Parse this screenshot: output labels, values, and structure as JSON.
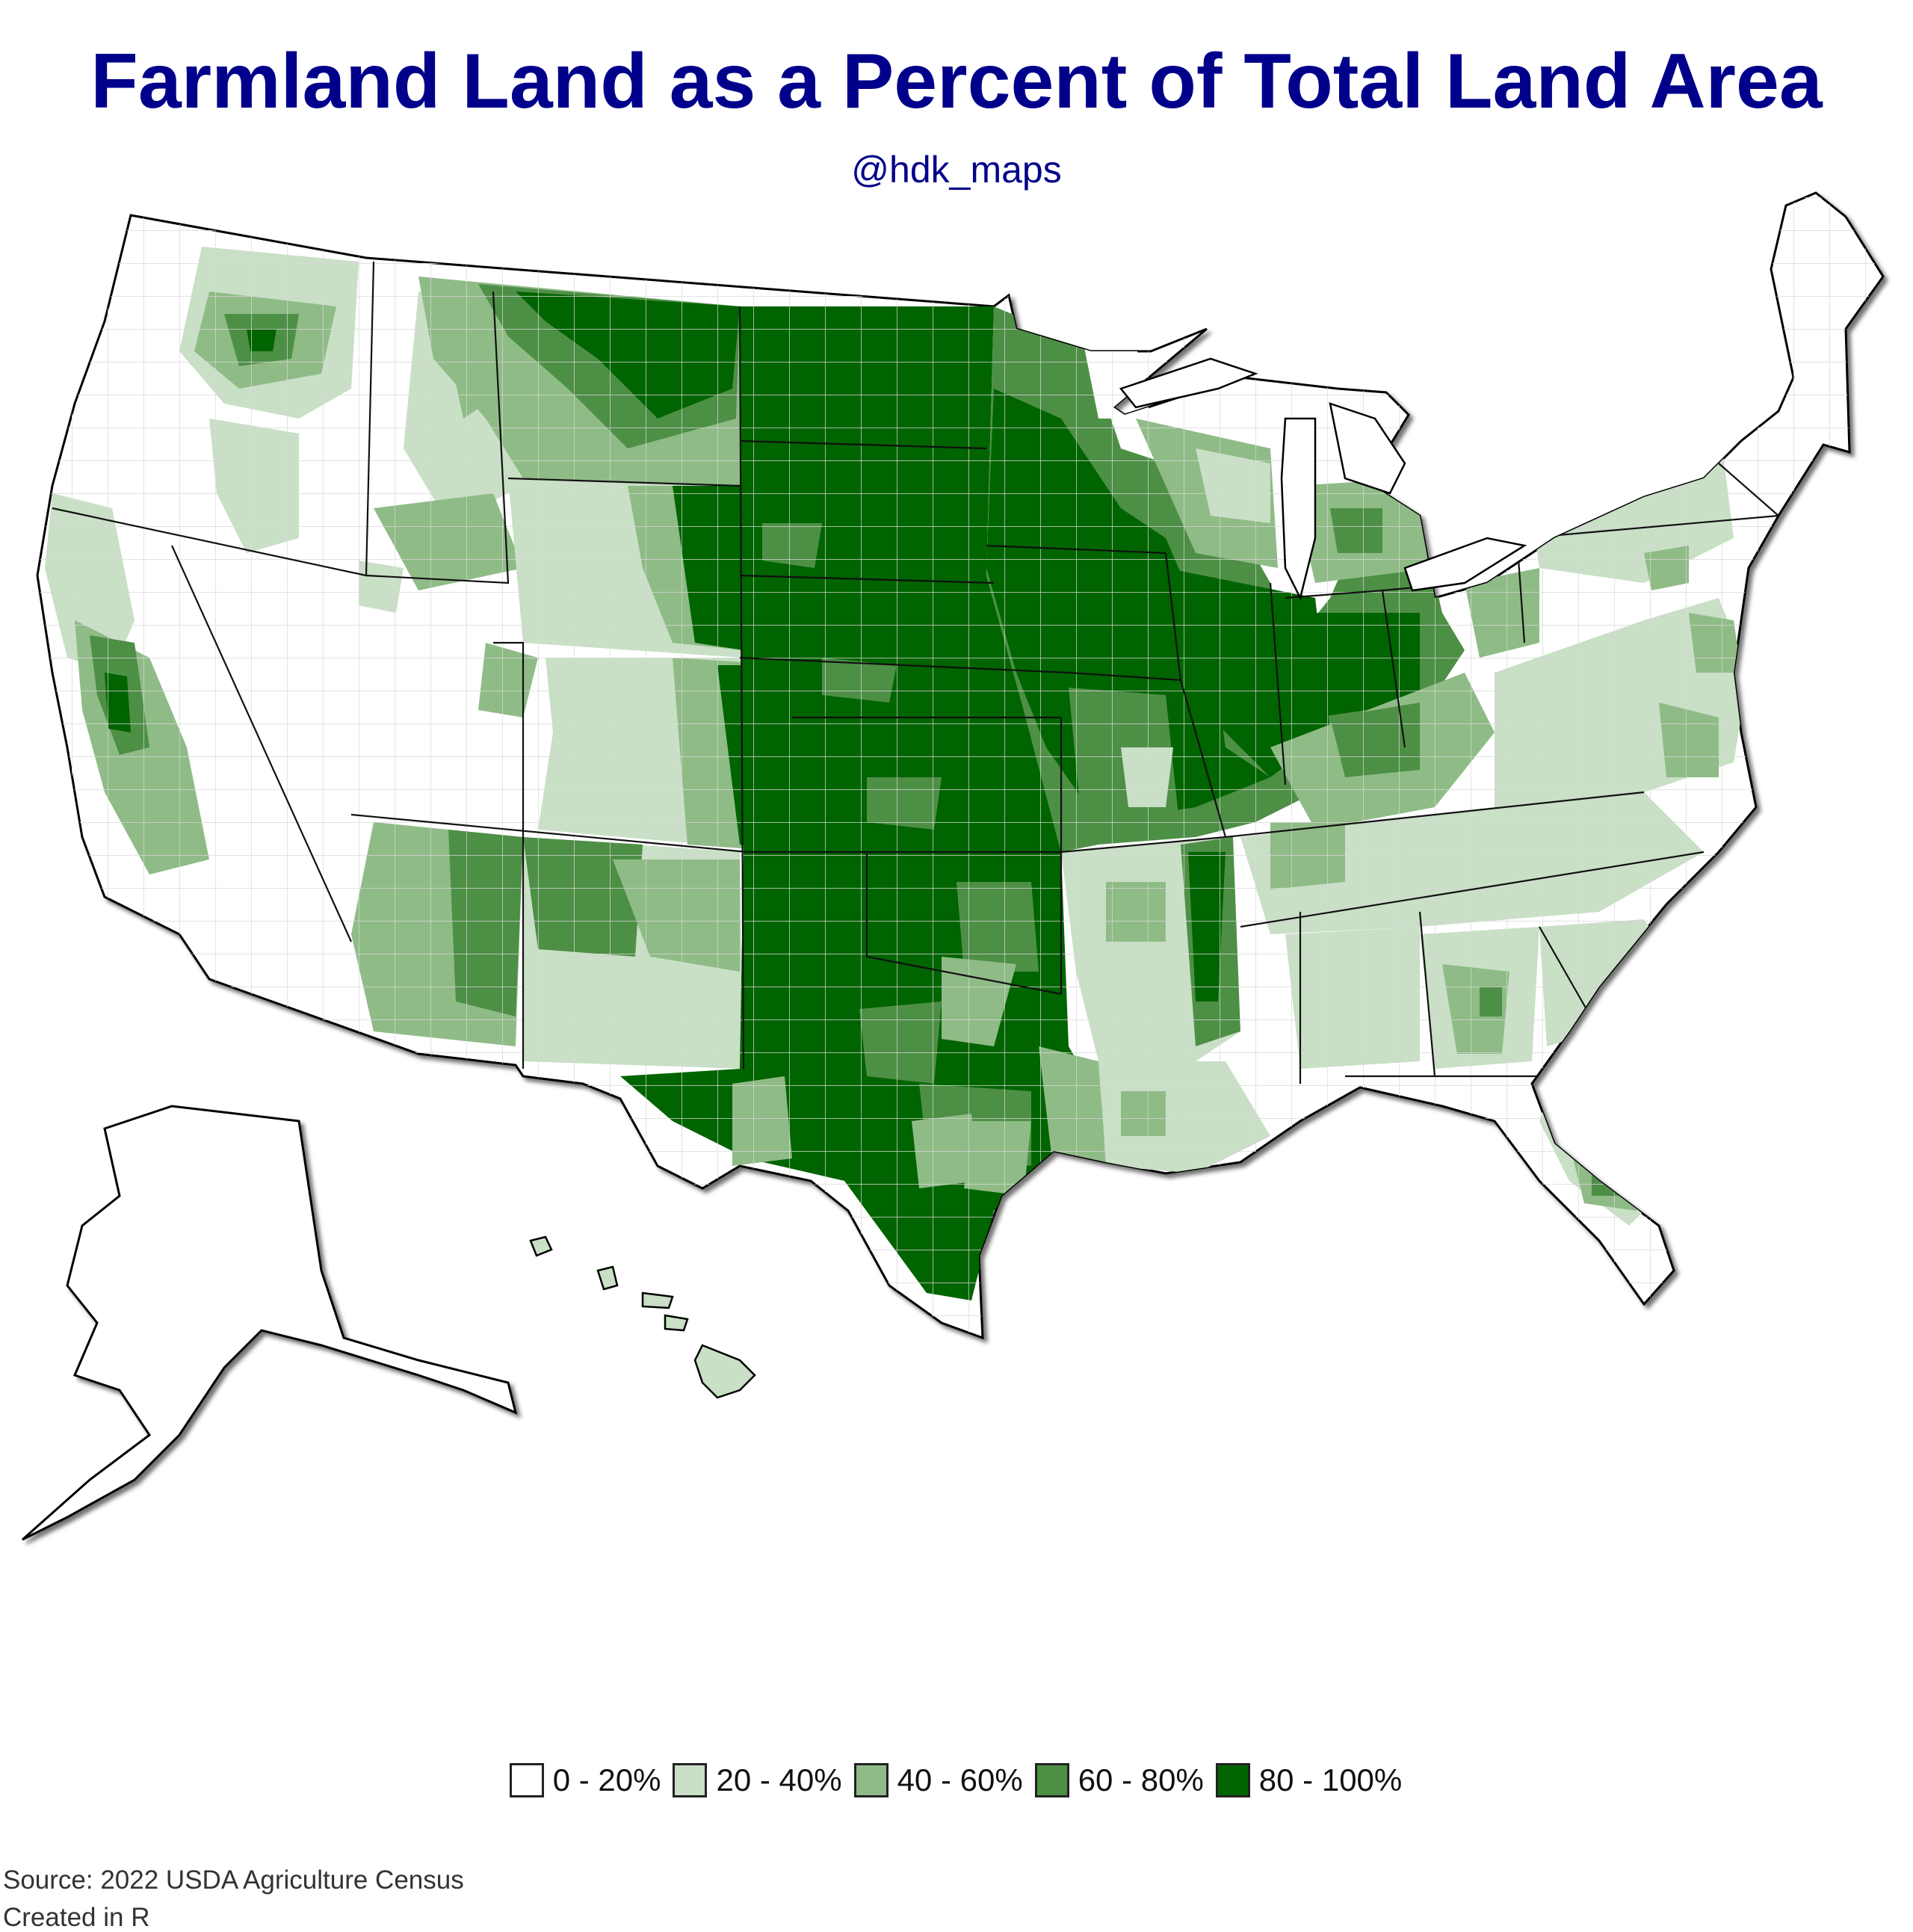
{
  "title": "Farmland Land as a Percent of Total Land Area",
  "subtitle": "@hdk_maps",
  "legend": [
    {
      "label": "0 - 20%",
      "color": "#ffffff"
    },
    {
      "label": "20 - 40%",
      "color": "#c9dfc6"
    },
    {
      "label": "40 - 60%",
      "color": "#8fbb87"
    },
    {
      "label": "60 - 80%",
      "color": "#4e8f46"
    },
    {
      "label": "80 - 100%",
      "color": "#006400"
    }
  ],
  "source": "Source: 2022 USDA Agriculture Census",
  "created": "Created in R",
  "map": {
    "region": "United States (counties)",
    "regions_dark": [
      "Great Plains",
      "Corn Belt",
      "Texas"
    ],
    "colors": {
      "border": "#000000",
      "county_line": "#dddddd",
      "background": "#ffffff"
    }
  }
}
